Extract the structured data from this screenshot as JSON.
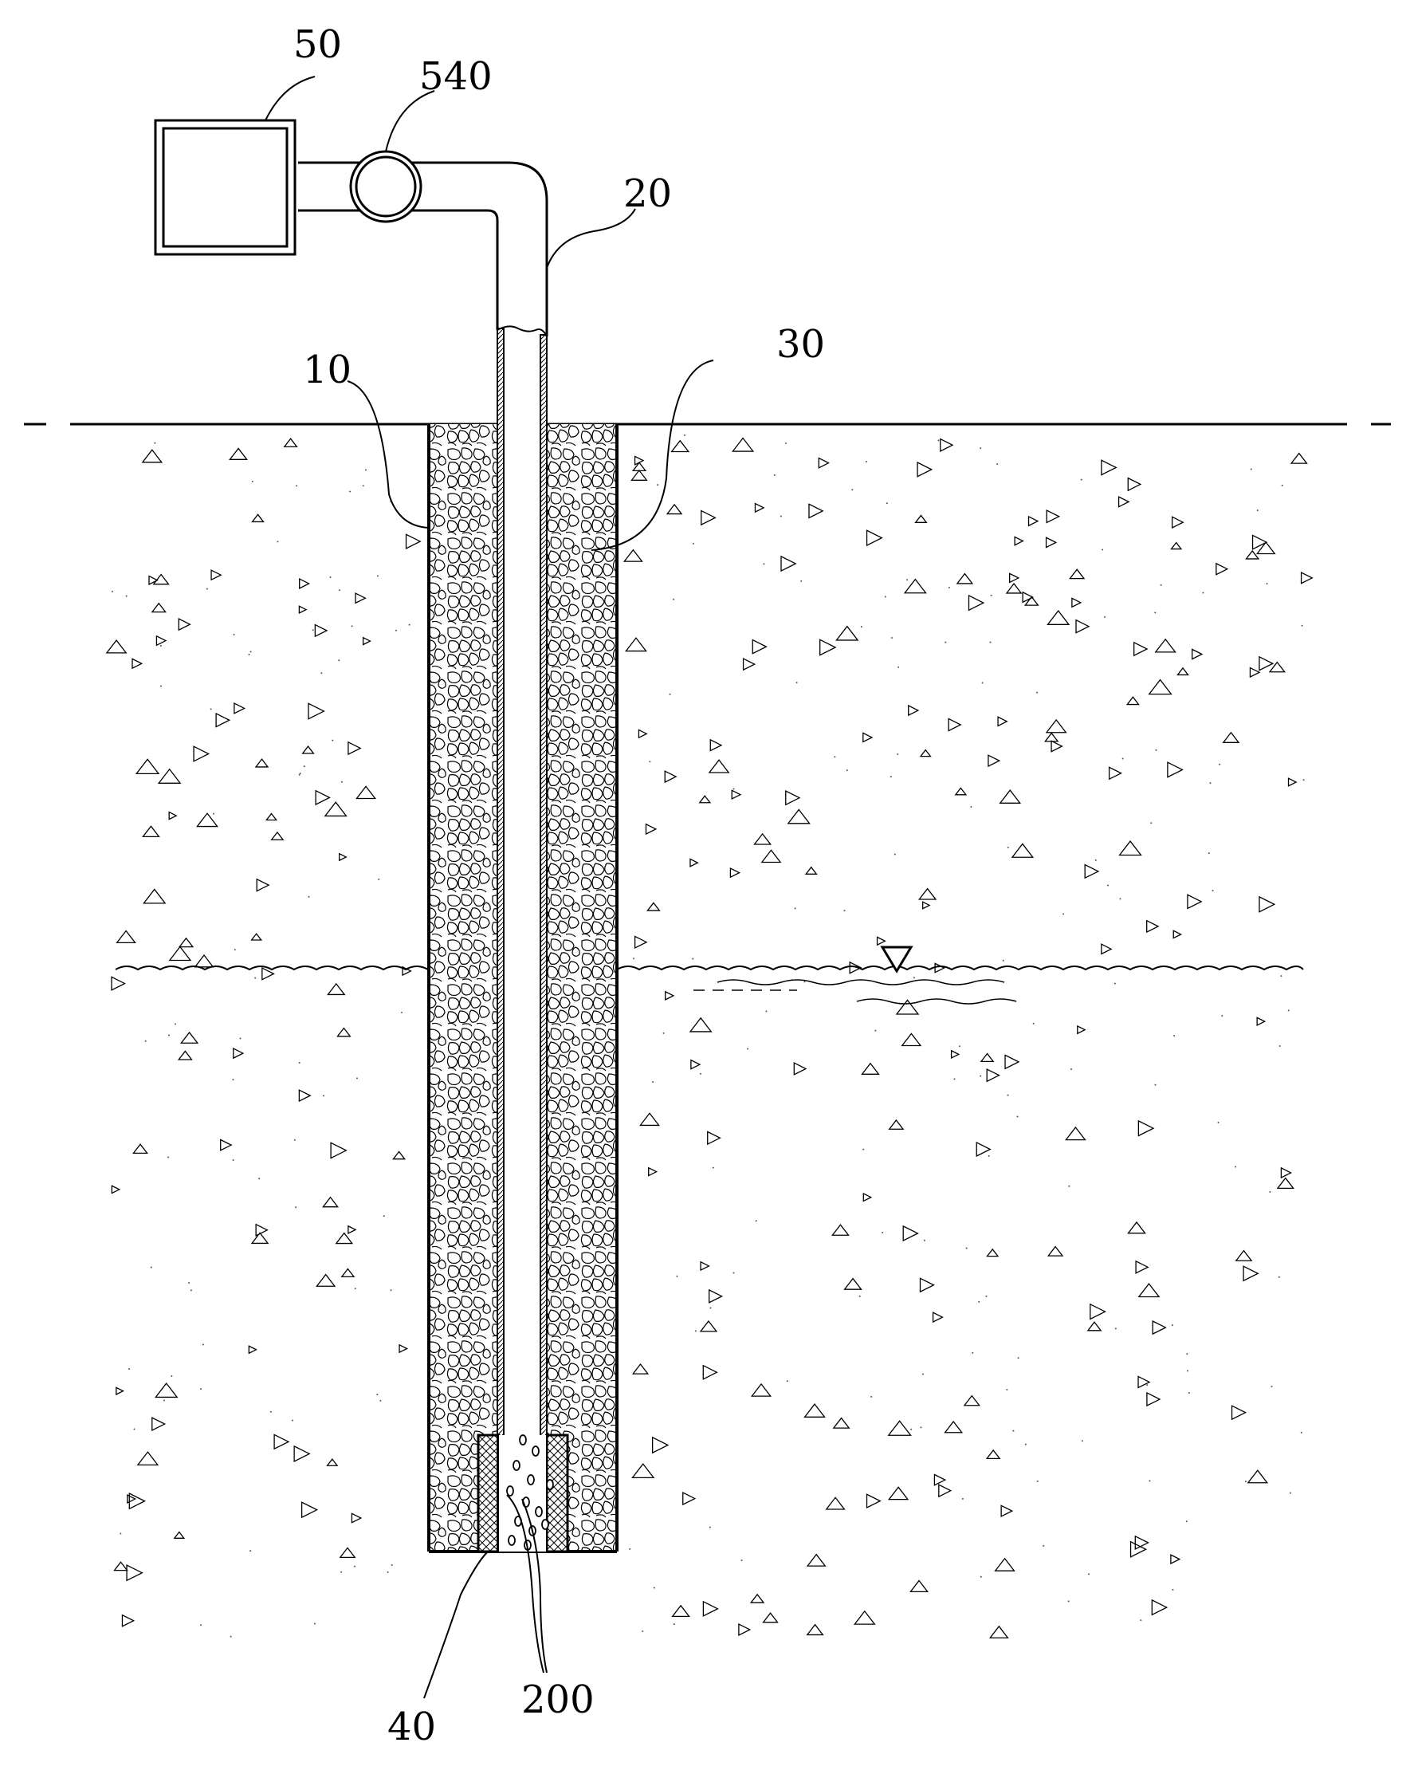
{
  "labels": {
    "control_unit": "50",
    "valve": "540",
    "pipe": "20",
    "borehole": "10",
    "gravel_fill": "30",
    "screen": "40",
    "bubbles": "200"
  },
  "colors": {
    "line": "#000000",
    "background": "#ffffff"
  }
}
